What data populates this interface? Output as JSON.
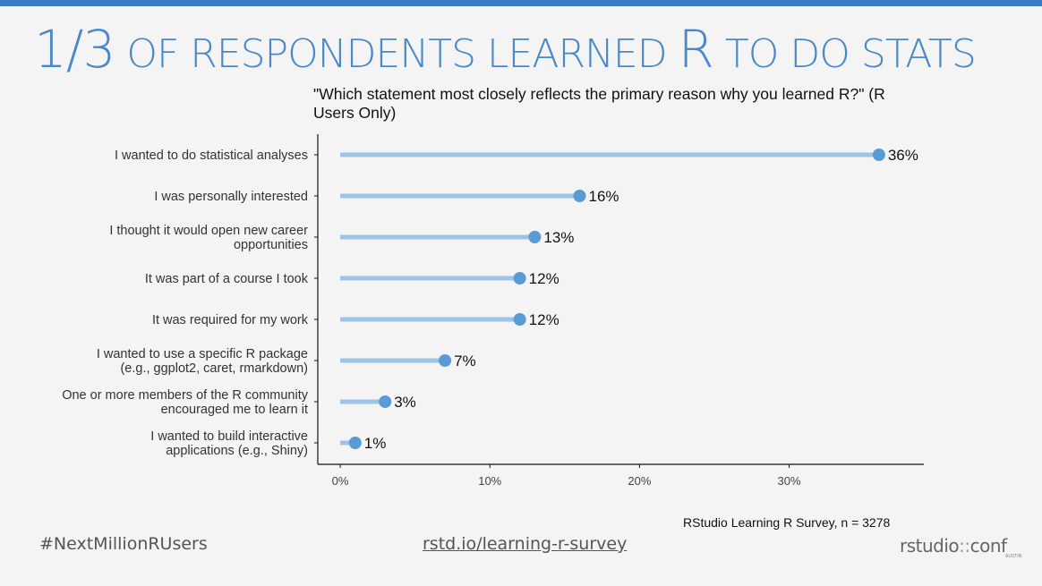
{
  "slide": {
    "title_num": "1/3",
    "title_part1": " OF RESPONDENTS LEARNED ",
    "title_r": "R",
    "title_part2": " TO DO STATS",
    "hashtag": "#NextMillionRUsers",
    "link": "rstd.io/learning-r-survey",
    "logo_main": "rstudio",
    "logo_sep": "::",
    "logo_conf": "conf",
    "logo_sub": "AUSTIN"
  },
  "chart_data": {
    "type": "lollipop",
    "title": "\"Which statement most closely reflects the primary reason why you learned R?\" (R Users Only)",
    "caption": "RStudio Learning R Survey, n = 3278",
    "categories": [
      [
        "I wanted to do statistical analyses"
      ],
      [
        "I was personally interested"
      ],
      [
        "I thought it would open new career",
        "opportunities"
      ],
      [
        "It was part of a course I took"
      ],
      [
        "It was required for my work"
      ],
      [
        "I wanted to use a specific R package",
        "(e.g., ggplot2, caret, rmarkdown)"
      ],
      [
        "One or more members of the R community",
        "encouraged me to learn it"
      ],
      [
        "I wanted to build interactive",
        "applications (e.g., Shiny)"
      ]
    ],
    "values": [
      36,
      16,
      13,
      12,
      12,
      7,
      3,
      1
    ],
    "value_labels": [
      "36%",
      "16%",
      "13%",
      "12%",
      "12%",
      "7%",
      "3%",
      "1%"
    ],
    "xlim": [
      -1.5,
      39
    ],
    "xticks": [
      0,
      10,
      20,
      30
    ],
    "xtick_labels": [
      "0%",
      "10%",
      "20%",
      "30%"
    ],
    "colors": {
      "bar": "#9dc3e6",
      "dot": "#5b9bd5",
      "axis": "#111111"
    }
  }
}
